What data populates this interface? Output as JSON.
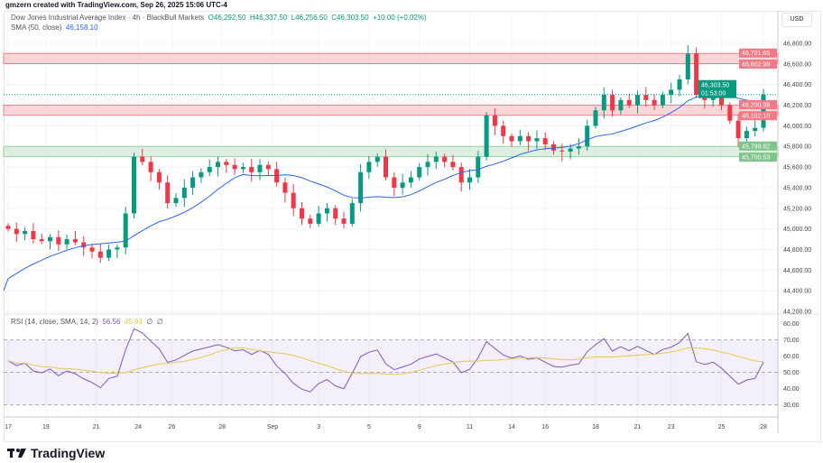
{
  "credit": "gmzern created with TradingView.com, Sep 26, 2025 15:06 UTC-4",
  "legend": {
    "symbol": "Dow Jones Industrial Average Index · 4h · BlackBull Markets",
    "open": "O46,292.50",
    "high": "H46,337.50",
    "low": "L46,256.50",
    "close": "C46,303.50",
    "change": "+10.00 (+0.02%)",
    "sma_label": "SMA (50, close)",
    "sma_value": "46,158.10"
  },
  "rsi_legend": {
    "label": "RSI (14, close, SMA, 14, 2)",
    "rsi": "56.56",
    "rsi_sma": "45.94",
    "extra1": "∅",
    "extra2": "∅"
  },
  "currency": "USD",
  "logo_text": "TradingView",
  "colors": {
    "up": "#089981",
    "down": "#f23645",
    "sma": "#2962ff",
    "rsi": "#7e57c2",
    "rsi_sma": "#e6c84f",
    "red_zone": "#f8c4c8",
    "green_zone": "#cfe9d2"
  },
  "price_badges": {
    "current": "46,303.50",
    "countdown": "01:53:00",
    "r1_top": "46,701.65",
    "r1_bottom": "46,602.99",
    "r2_top": "46,200.39",
    "r2_bottom": "46,102.10",
    "s1_top": "45,799.82",
    "s1_bottom": "45,700.53"
  },
  "chart_data": {
    "type": "candlestick",
    "title": "Dow Jones Industrial Average Index · 4h",
    "zones": [
      {
        "kind": "resistance",
        "low": 46602.99,
        "high": 46701.65
      },
      {
        "kind": "resistance",
        "low": 46102.1,
        "high": 46200.39
      },
      {
        "kind": "support",
        "low": 45700.53,
        "high": 45799.82
      }
    ],
    "current_price": 46303.5,
    "ylim": [
      44200,
      46800
    ],
    "y_ticks": [
      "46,800.00",
      "46,600.00",
      "46,400.00",
      "46,200.00",
      "46,000.00",
      "45,800.00",
      "45,600.00",
      "45,400.00",
      "45,200.00",
      "45,000.00",
      "44,800.00",
      "44,600.00",
      "44,400.00",
      "44,200.00"
    ],
    "y_tick_values": [
      46800,
      46600,
      46400,
      46200,
      46000,
      45800,
      45600,
      45400,
      45200,
      45000,
      44800,
      44600,
      44400,
      44200
    ],
    "x_ticks": [
      "17",
      "19",
      "21",
      "24",
      "26",
      "28",
      "Sep",
      "3",
      "5",
      "9",
      "11",
      "14",
      "16",
      "18",
      "21",
      "23",
      "25",
      "28"
    ],
    "x_tick_index": [
      0,
      4.5,
      10.5,
      15.5,
      19.5,
      25.5,
      31.5,
      37,
      43,
      49,
      55,
      60,
      64,
      70,
      75,
      79,
      85,
      90
    ],
    "close": [
      45000,
      44950,
      44980,
      44900,
      44880,
      44920,
      44850,
      44900,
      44870,
      44820,
      44780,
      44720,
      44800,
      44820,
      45150,
      45700,
      45650,
      45550,
      45450,
      45250,
      45300,
      45400,
      45500,
      45550,
      45600,
      45650,
      45620,
      45580,
      45600,
      45550,
      45620,
      45580,
      45450,
      45350,
      45200,
      45100,
      45050,
      45150,
      45200,
      45100,
      45050,
      45250,
      45550,
      45650,
      45700,
      45500,
      45400,
      45450,
      45500,
      45600,
      45650,
      45700,
      45650,
      45600,
      45450,
      45500,
      45700,
      46100,
      46000,
      45900,
      45850,
      45900,
      45850,
      45880,
      45820,
      45760,
      45750,
      45780,
      45800,
      46000,
      46150,
      46300,
      46150,
      46250,
      46200,
      46300,
      46250,
      46200,
      46300,
      46350,
      46450,
      46700,
      46300,
      46250,
      46300,
      46200,
      46050,
      45880,
      45950,
      45980,
      46303.5
    ],
    "sma_period": 50,
    "rsi": {
      "period": 14,
      "sma_period": 14,
      "ylim": [
        27,
        82
      ],
      "levels": [
        70,
        50,
        30
      ],
      "y_ticks": [
        "80.00",
        "70.00",
        "60.00",
        "50.00",
        "40.00",
        "30.00"
      ],
      "y_tick_values": [
        80,
        70,
        60,
        50,
        40,
        30
      ]
    }
  }
}
